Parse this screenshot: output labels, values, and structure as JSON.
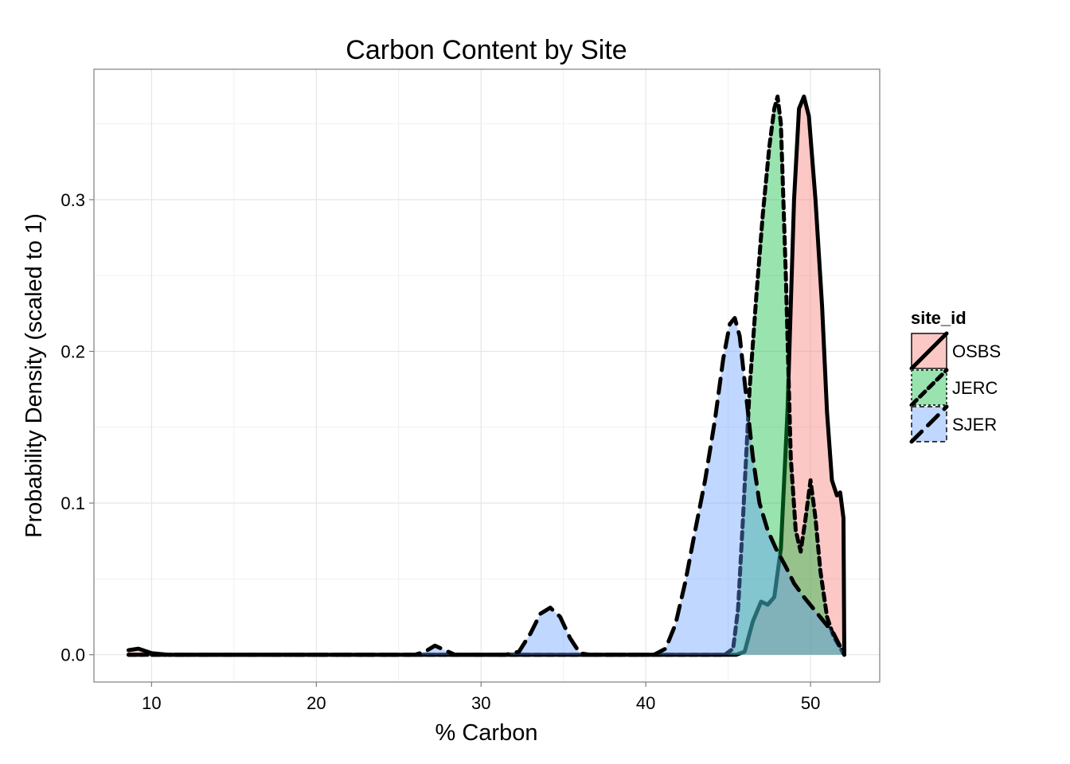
{
  "chart_data": {
    "type": "area",
    "title": "Carbon Content by Site",
    "xlabel": "% Carbon",
    "ylabel": "Probability Density (scaled to 1)",
    "xlim": [
      6.5,
      54.2
    ],
    "ylim": [
      -0.018,
      0.386
    ],
    "x_ticks": [
      10,
      20,
      30,
      40,
      50
    ],
    "y_ticks": [
      0.0,
      0.1,
      0.2,
      0.3
    ],
    "y_tick_labels": [
      "0.0",
      "0.1",
      "0.2",
      "0.3"
    ],
    "grid": true,
    "legend": {
      "title": "site_id",
      "placement": "right"
    },
    "series": [
      {
        "name": "OSBS",
        "fill": "#F8766D",
        "line_style": "solid",
        "points": [
          [
            8.6,
            0.003
          ],
          [
            9.2,
            0.004
          ],
          [
            10.0,
            0.001
          ],
          [
            11.0,
            0.0
          ],
          [
            20.0,
            0.0
          ],
          [
            30.0,
            0.0
          ],
          [
            40.0,
            0.0
          ],
          [
            44.0,
            0.0
          ],
          [
            45.5,
            0.0
          ],
          [
            46.0,
            0.002
          ],
          [
            46.5,
            0.022
          ],
          [
            47.0,
            0.035
          ],
          [
            47.4,
            0.033
          ],
          [
            47.8,
            0.038
          ],
          [
            48.2,
            0.07
          ],
          [
            48.6,
            0.16
          ],
          [
            49.0,
            0.3
          ],
          [
            49.3,
            0.36
          ],
          [
            49.6,
            0.368
          ],
          [
            49.9,
            0.355
          ],
          [
            50.3,
            0.3
          ],
          [
            50.7,
            0.23
          ],
          [
            51.0,
            0.16
          ],
          [
            51.3,
            0.115
          ],
          [
            51.6,
            0.105
          ],
          [
            51.8,
            0.107
          ],
          [
            52.0,
            0.09
          ],
          [
            52.05,
            0.0
          ]
        ]
      },
      {
        "name": "JERC",
        "fill": "#00BA38",
        "line_style": "dotted",
        "points": [
          [
            8.6,
            0.0
          ],
          [
            30.0,
            0.0
          ],
          [
            44.0,
            0.0
          ],
          [
            44.8,
            0.0
          ],
          [
            45.3,
            0.004
          ],
          [
            45.6,
            0.03
          ],
          [
            45.9,
            0.09
          ],
          [
            46.3,
            0.175
          ],
          [
            46.7,
            0.235
          ],
          [
            47.1,
            0.29
          ],
          [
            47.5,
            0.335
          ],
          [
            47.8,
            0.36
          ],
          [
            48.0,
            0.368
          ],
          [
            48.2,
            0.35
          ],
          [
            48.5,
            0.25
          ],
          [
            48.8,
            0.13
          ],
          [
            49.1,
            0.082
          ],
          [
            49.4,
            0.068
          ],
          [
            49.7,
            0.09
          ],
          [
            50.0,
            0.115
          ],
          [
            50.3,
            0.09
          ],
          [
            50.6,
            0.055
          ],
          [
            51.0,
            0.025
          ],
          [
            51.4,
            0.012
          ],
          [
            52.05,
            0.0
          ]
        ]
      },
      {
        "name": "SJER",
        "fill": "#619CFF",
        "line_style": "dashed",
        "points": [
          [
            8.6,
            0.0
          ],
          [
            20.0,
            0.0
          ],
          [
            26.0,
            0.0
          ],
          [
            26.6,
            0.002
          ],
          [
            27.2,
            0.006
          ],
          [
            27.8,
            0.003
          ],
          [
            28.4,
            0.0
          ],
          [
            31.5,
            0.0
          ],
          [
            32.3,
            0.002
          ],
          [
            33.0,
            0.014
          ],
          [
            33.6,
            0.027
          ],
          [
            34.2,
            0.031
          ],
          [
            34.8,
            0.025
          ],
          [
            35.4,
            0.011
          ],
          [
            36.0,
            0.001
          ],
          [
            36.6,
            0.0
          ],
          [
            40.5,
            0.0
          ],
          [
            41.2,
            0.004
          ],
          [
            41.8,
            0.02
          ],
          [
            42.4,
            0.048
          ],
          [
            43.0,
            0.082
          ],
          [
            43.6,
            0.115
          ],
          [
            44.2,
            0.155
          ],
          [
            44.7,
            0.195
          ],
          [
            45.1,
            0.218
          ],
          [
            45.4,
            0.222
          ],
          [
            45.7,
            0.21
          ],
          [
            46.1,
            0.17
          ],
          [
            46.5,
            0.13
          ],
          [
            46.9,
            0.1
          ],
          [
            47.4,
            0.082
          ],
          [
            47.9,
            0.07
          ],
          [
            48.5,
            0.058
          ],
          [
            49.0,
            0.047
          ],
          [
            49.6,
            0.038
          ],
          [
            50.2,
            0.03
          ],
          [
            50.8,
            0.022
          ],
          [
            51.4,
            0.014
          ],
          [
            52.05,
            0.0
          ]
        ]
      }
    ]
  }
}
